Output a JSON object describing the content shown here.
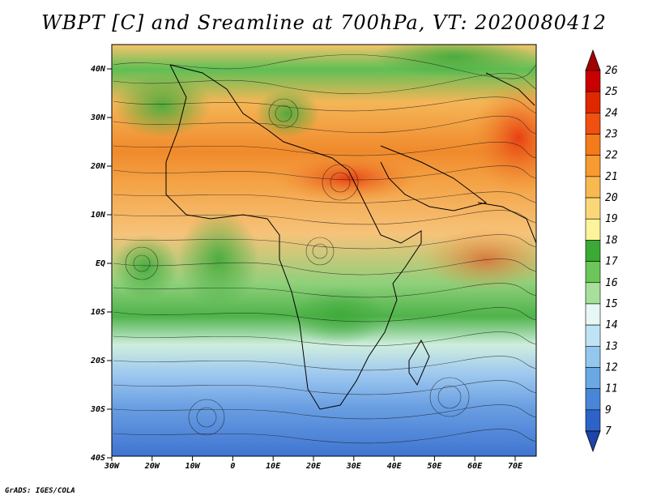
{
  "title": "WBPT [C] and Sreamline at 700hPa, VT: 2020080412",
  "credit": "GrADS: IGES/COLA",
  "axes": {
    "lat_labels": [
      "40N",
      "30N",
      "20N",
      "10N",
      "EQ",
      "10S",
      "20S",
      "30S",
      "40S"
    ],
    "lon_labels": [
      "30W",
      "20W",
      "10W",
      "0",
      "10E",
      "20E",
      "30E",
      "40E",
      "50E",
      "60E",
      "70E"
    ]
  },
  "colorbar": {
    "labels": [
      "26",
      "25",
      "24",
      "23",
      "22",
      "21",
      "20",
      "19",
      "18",
      "17",
      "16",
      "15",
      "14",
      "13",
      "12",
      "11",
      "9",
      "7"
    ],
    "colors": [
      "#a50000",
      "#c80000",
      "#e02800",
      "#f05010",
      "#f57a1c",
      "#f79a30",
      "#f9b951",
      "#fbd777",
      "#fdf39b",
      "#3aaa35",
      "#6cc65a",
      "#a7e09a",
      "#e6f7f5",
      "#bfe3f4",
      "#93c7ee",
      "#6aa8e4",
      "#4a86d8",
      "#2d62c8",
      "#1e44a8"
    ]
  }
}
